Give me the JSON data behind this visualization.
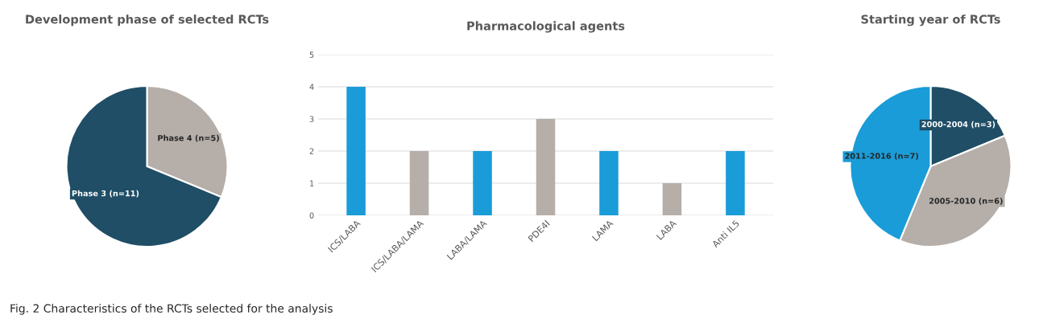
{
  "chart_data": [
    {
      "type": "pie",
      "title": "Development phase of selected RCTs",
      "categories": [
        "Phase 4 (n=5)",
        "Phase 3 (n=11)"
      ],
      "values": [
        5,
        11
      ],
      "colors": [
        "#b5aea9",
        "#1f4e66"
      ],
      "annotations": [
        "Fig. 2 Characteristics of the RCTs selected for the analysis"
      ]
    },
    {
      "type": "bar",
      "title": "Pharmacological agents",
      "categories": [
        "ICS/LABA",
        "ICS/LABA/LAMA",
        "LABA/LAMA",
        "PDE4I",
        "LAMA",
        "LABA",
        "Anti IL5"
      ],
      "values": [
        4,
        2,
        2,
        3,
        2,
        1,
        2
      ],
      "colors": [
        "#1a9cd8",
        "#b5aea9",
        "#1a9cd8",
        "#b5aea9",
        "#1a9cd8",
        "#b5aea9",
        "#1a9cd8"
      ],
      "ylim": [
        0,
        5
      ],
      "yticks": [
        0,
        1,
        2,
        3,
        4,
        5
      ],
      "grid": "y"
    },
    {
      "type": "pie",
      "title": "Starting year of RCTs",
      "categories": [
        "2000-2004 (n=3)",
        "2005-2010 (n=6)",
        "2011-2016 (n=7)"
      ],
      "values": [
        3,
        6,
        7
      ],
      "colors": [
        "#1f4e66",
        "#b5aea9",
        "#1a9cd8"
      ]
    }
  ]
}
